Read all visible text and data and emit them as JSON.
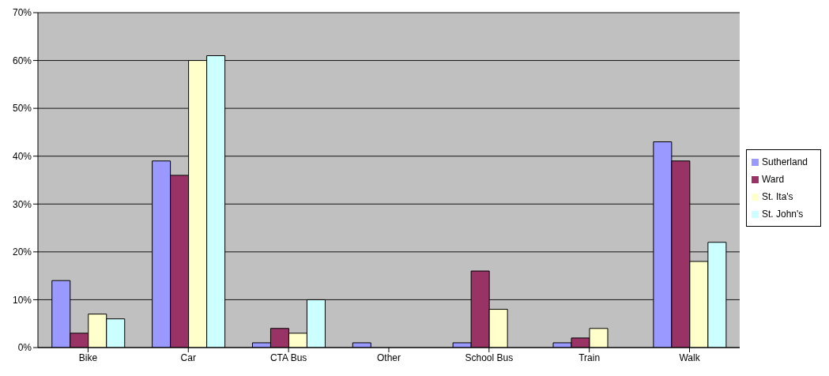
{
  "chart_data": {
    "type": "bar",
    "categories": [
      "Bike",
      "Car",
      "CTA Bus",
      "Other",
      "School Bus",
      "Train",
      "Walk"
    ],
    "series": [
      {
        "name": "Sutherland",
        "color": "#9999ff",
        "values": [
          14,
          39,
          1,
          1,
          1,
          1,
          43
        ]
      },
      {
        "name": "Ward",
        "color": "#993366",
        "values": [
          3,
          36,
          4,
          null,
          16,
          2,
          39
        ]
      },
      {
        "name": "St. Ita's",
        "color": "#ffffcc",
        "values": [
          7,
          60,
          3,
          null,
          8,
          4,
          18
        ]
      },
      {
        "name": "St. John's",
        "color": "#ccffff",
        "values": [
          6,
          61,
          10,
          null,
          null,
          null,
          22
        ]
      }
    ],
    "ylim": [
      0,
      70
    ],
    "yticks": [
      {
        "value": 0,
        "label": "0%"
      },
      {
        "value": 10,
        "label": "10%"
      },
      {
        "value": 20,
        "label": "20%"
      },
      {
        "value": 30,
        "label": "30%"
      },
      {
        "value": 40,
        "label": "40%"
      },
      {
        "value": 50,
        "label": "50%"
      },
      {
        "value": 60,
        "label": "60%"
      },
      {
        "value": 70,
        "label": "70%"
      }
    ],
    "grid": "y",
    "legend": "right"
  }
}
